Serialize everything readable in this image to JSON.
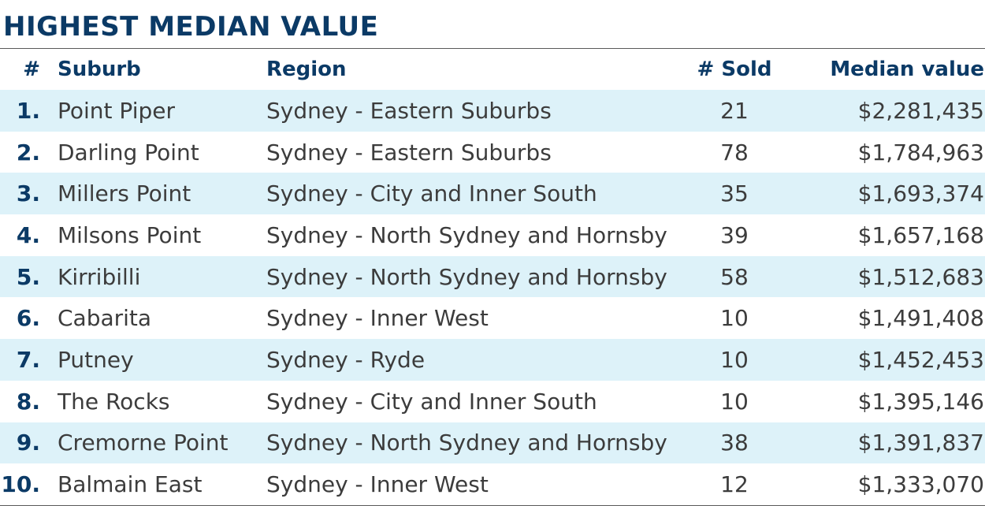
{
  "title": "HIGHEST MEDIAN VALUE",
  "columns": {
    "num": "#",
    "suburb": "Suburb",
    "region": "Region",
    "sold": "# Sold",
    "median": "Median value"
  },
  "rows": [
    {
      "rank": "1.",
      "suburb": "Point Piper",
      "region": "Sydney - Eastern Suburbs",
      "sold": "21",
      "median": "$2,281,435"
    },
    {
      "rank": "2.",
      "suburb": "Darling Point",
      "region": "Sydney - Eastern Suburbs",
      "sold": "78",
      "median": "$1,784,963"
    },
    {
      "rank": "3.",
      "suburb": "Millers Point",
      "region": "Sydney - City and Inner South",
      "sold": "35",
      "median": "$1,693,374"
    },
    {
      "rank": "4.",
      "suburb": "Milsons Point",
      "region": "Sydney - North Sydney and Hornsby",
      "sold": "39",
      "median": "$1,657,168"
    },
    {
      "rank": "5.",
      "suburb": "Kirribilli",
      "region": "Sydney - North Sydney and Hornsby",
      "sold": "58",
      "median": "$1,512,683"
    },
    {
      "rank": "6.",
      "suburb": "Cabarita",
      "region": "Sydney - Inner West",
      "sold": "10",
      "median": "$1,491,408"
    },
    {
      "rank": "7.",
      "suburb": "Putney",
      "region": "Sydney - Ryde",
      "sold": "10",
      "median": "$1,452,453"
    },
    {
      "rank": "8.",
      "suburb": "The Rocks",
      "region": "Sydney - City and Inner South",
      "sold": "10",
      "median": "$1,395,146"
    },
    {
      "rank": "9.",
      "suburb": "Cremorne Point",
      "region": "Sydney - North Sydney and Hornsby",
      "sold": "38",
      "median": "$1,391,837"
    },
    {
      "rank": "10.",
      "suburb": "Balmain East",
      "region": "Sydney - Inner West",
      "sold": "12",
      "median": "$1,333,070"
    }
  ],
  "colors": {
    "heading": "#0b3a66",
    "stripe": "#ddf2f9",
    "text": "#3c3c3c"
  }
}
